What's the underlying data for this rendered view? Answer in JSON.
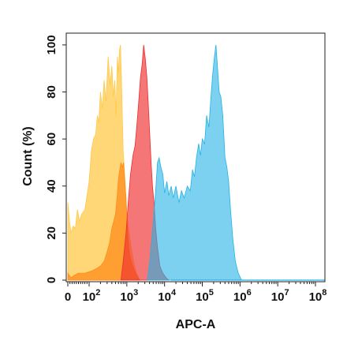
{
  "chart_data": {
    "type": "area",
    "title": "",
    "xlabel": "APC-A",
    "ylabel": "Count  (%)",
    "x_scale": "biexponential",
    "xlim": [
      0,
      100000000
    ],
    "ylim": [
      0,
      105
    ],
    "x_ticks": [
      {
        "value": 0,
        "base": "0",
        "exp": ""
      },
      {
        "value": 100,
        "base": "10",
        "exp": "2"
      },
      {
        "value": 1000,
        "base": "10",
        "exp": "3"
      },
      {
        "value": 10000,
        "base": "10",
        "exp": "4"
      },
      {
        "value": 100000,
        "base": "10",
        "exp": "5"
      },
      {
        "value": 1000000,
        "base": "10",
        "exp": "6"
      },
      {
        "value": 10000000,
        "base": "10",
        "exp": "7"
      },
      {
        "value": 100000000,
        "base": "10",
        "exp": "8"
      }
    ],
    "y_ticks": [
      "0",
      "20",
      "40",
      "60",
      "80",
      "100"
    ],
    "y_tick_values": [
      0,
      20,
      40,
      60,
      80,
      100
    ],
    "grid": false,
    "legend": "none",
    "series": [
      {
        "color": "#ffc94a",
        "opacity": 0.75,
        "points": [
          [
            0,
            0
          ],
          [
            0,
            33
          ],
          [
            8,
            25
          ],
          [
            15,
            20
          ],
          [
            25,
            23
          ],
          [
            35,
            22
          ],
          [
            45,
            30
          ],
          [
            55,
            25
          ],
          [
            65,
            28
          ],
          [
            80,
            30
          ],
          [
            100,
            42
          ],
          [
            115,
            55
          ],
          [
            130,
            60
          ],
          [
            150,
            62
          ],
          [
            165,
            70
          ],
          [
            180,
            67
          ],
          [
            200,
            80
          ],
          [
            225,
            73
          ],
          [
            250,
            85
          ],
          [
            280,
            76
          ],
          [
            320,
            95
          ],
          [
            360,
            83
          ],
          [
            400,
            91
          ],
          [
            440,
            78
          ],
          [
            480,
            85
          ],
          [
            520,
            70
          ],
          [
            560,
            95
          ],
          [
            600,
            88
          ],
          [
            640,
            98
          ],
          [
            680,
            100
          ],
          [
            720,
            86
          ],
          [
            760,
            70
          ],
          [
            800,
            55
          ],
          [
            900,
            42
          ],
          [
            1000,
            28
          ],
          [
            1150,
            20
          ],
          [
            1300,
            14
          ],
          [
            1500,
            8
          ],
          [
            1800,
            3
          ],
          [
            2200,
            0
          ]
        ]
      },
      {
        "color": "#ff8c1a",
        "opacity": 0.75,
        "points": [
          [
            0,
            0
          ],
          [
            0,
            3
          ],
          [
            15,
            1
          ],
          [
            30,
            2
          ],
          [
            50,
            3
          ],
          [
            80,
            3
          ],
          [
            120,
            4
          ],
          [
            160,
            5
          ],
          [
            200,
            6
          ],
          [
            250,
            8
          ],
          [
            300,
            12
          ],
          [
            350,
            16
          ],
          [
            400,
            22
          ],
          [
            450,
            25
          ],
          [
            500,
            28
          ],
          [
            550,
            35
          ],
          [
            600,
            43
          ],
          [
            650,
            47
          ],
          [
            700,
            50
          ],
          [
            760,
            48
          ],
          [
            820,
            50
          ],
          [
            880,
            42
          ],
          [
            950,
            35
          ],
          [
            1050,
            20
          ],
          [
            1150,
            12
          ],
          [
            1300,
            8
          ],
          [
            1500,
            5
          ],
          [
            1800,
            2
          ],
          [
            2200,
            0
          ]
        ]
      },
      {
        "color": "#ee2c2c",
        "opacity": 0.65,
        "points": [
          [
            700,
            0
          ],
          [
            800,
            8
          ],
          [
            950,
            20
          ],
          [
            1100,
            34
          ],
          [
            1250,
            45
          ],
          [
            1450,
            53
          ],
          [
            1650,
            57
          ],
          [
            1850,
            66
          ],
          [
            2050,
            75
          ],
          [
            2300,
            86
          ],
          [
            2550,
            92
          ],
          [
            2800,
            100
          ],
          [
            3100,
            94
          ],
          [
            3400,
            86
          ],
          [
            3700,
            75
          ],
          [
            4000,
            64
          ],
          [
            4400,
            50
          ],
          [
            4800,
            40
          ],
          [
            5300,
            32
          ],
          [
            5800,
            22
          ],
          [
            6500,
            14
          ],
          [
            7500,
            6
          ],
          [
            9000,
            3
          ],
          [
            11000,
            1
          ],
          [
            13000,
            0
          ]
        ]
      },
      {
        "color": "#24b2e6",
        "opacity": 0.6,
        "points": [
          [
            3500,
            0
          ],
          [
            4200,
            10
          ],
          [
            5000,
            25
          ],
          [
            5800,
            38
          ],
          [
            6500,
            50
          ],
          [
            7200,
            52
          ],
          [
            8000,
            48
          ],
          [
            9000,
            45
          ],
          [
            10000,
            37
          ],
          [
            11500,
            42
          ],
          [
            13000,
            36
          ],
          [
            15000,
            40
          ],
          [
            17000,
            35
          ],
          [
            20000,
            40
          ],
          [
            24000,
            33
          ],
          [
            28000,
            38
          ],
          [
            33000,
            35
          ],
          [
            40000,
            40
          ],
          [
            48000,
            38
          ],
          [
            55000,
            47
          ],
          [
            62000,
            44
          ],
          [
            70000,
            52
          ],
          [
            80000,
            58
          ],
          [
            90000,
            53
          ],
          [
            100000,
            60
          ],
          [
            115000,
            58
          ],
          [
            130000,
            70
          ],
          [
            150000,
            65
          ],
          [
            170000,
            78
          ],
          [
            190000,
            88
          ],
          [
            210000,
            95
          ],
          [
            230000,
            100
          ],
          [
            250000,
            92
          ],
          [
            280000,
            80
          ],
          [
            310000,
            78
          ],
          [
            350000,
            70
          ],
          [
            400000,
            52
          ],
          [
            450000,
            48
          ],
          [
            500000,
            42
          ],
          [
            560000,
            30
          ],
          [
            640000,
            18
          ],
          [
            750000,
            8
          ],
          [
            900000,
            3
          ],
          [
            1100000,
            0
          ]
        ]
      }
    ]
  }
}
